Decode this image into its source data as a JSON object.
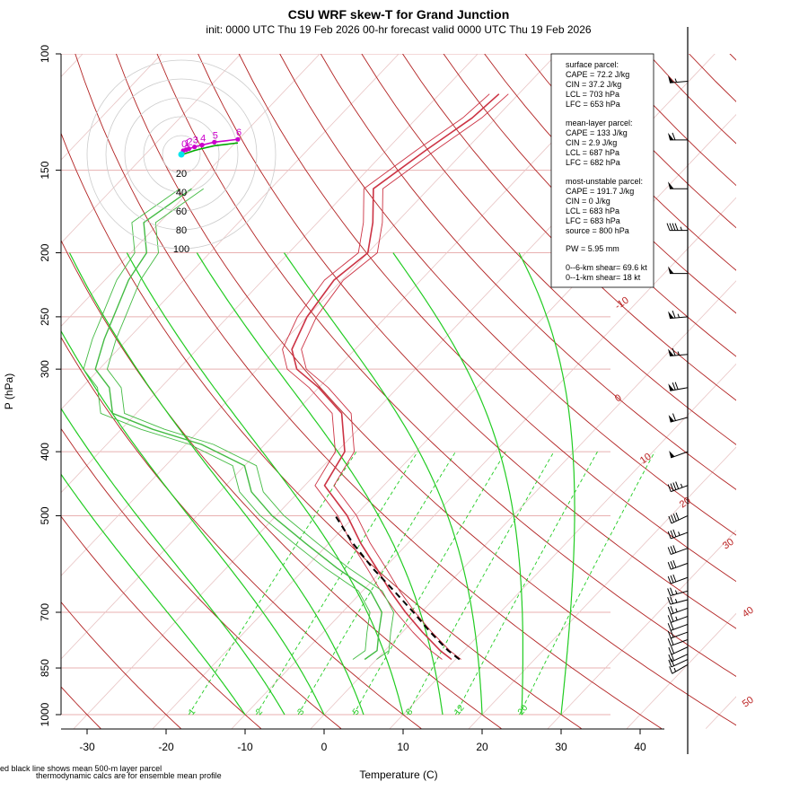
{
  "title": "CSU WRF skew-T for Grand Junction",
  "subtitle": "init: 0000 UTC Thu 19 Feb 2026     00-hr forecast valid 0000 UTC Thu 19 Feb 2026",
  "ylabel": "P (hPa)",
  "xlabel": "Temperature (C)",
  "footnote_line1": "ed black line shows mean 500-m layer parcel",
  "footnote_line2": "thermodynamic calcs are for ensemble mean profile",
  "info_box": {
    "surface_header": "surface parcel:",
    "surface_cape": "CAPE = 72.2 J/kg",
    "surface_cin": "CIN = 37.2 J/kg",
    "surface_lcl": "LCL = 703 hPa",
    "surface_lfc": "LFC = 653 hPa",
    "ml_header": "mean-layer parcel:",
    "ml_cape": "CAPE = 133 J/kg",
    "ml_cin": "CIN = 2.9 J/kg",
    "ml_lcl": "LCL = 687 hPa",
    "ml_lfc": "LFC = 682 hPa",
    "mu_header": "most-unstable parcel:",
    "mu_cape": "CAPE = 191.7 J/kg",
    "mu_cin": "CIN = 0 J/kg",
    "mu_lcl": "LCL = 683 hPa",
    "mu_lfc": "LFC = 683 hPa",
    "mu_source": "source = 800 hPa",
    "pw": "PW =  5.95 mm",
    "shear_06": "0--6-km shear= 69.6 kt",
    "shear_01": "0--1-km shear= 18 kt"
  },
  "chart_data": {
    "type": "skew-t",
    "colors": {
      "isotherm": "#b22222",
      "dry_adiabat": "#b22222",
      "moist_adiabat": "#22cc22",
      "mixing_ratio": "#22cc22",
      "temperature": "#cc3344",
      "dewpoint": "#44bb44",
      "parcel": "#000000",
      "hodograph_members": "#cc00cc",
      "hodograph_mean": "#00aa00"
    },
    "x_ticks": [
      "-30",
      "-20",
      "-10",
      "0",
      "10",
      "20",
      "30",
      "40"
    ],
    "x_tick_values": [
      -30,
      -20,
      -10,
      0,
      10,
      20,
      30,
      40
    ],
    "xlim": [
      -33,
      45
    ],
    "y_ticks": [
      "100",
      "150",
      "200",
      "250",
      "300",
      "400",
      "500",
      "700",
      "850",
      "1000"
    ],
    "y_tick_values": [
      100,
      150,
      200,
      250,
      300,
      400,
      500,
      700,
      850,
      1000
    ],
    "ylim": [
      1000,
      100
    ],
    "isotherm_labels": [
      "-10",
      "0",
      "10",
      "20",
      "30",
      "40",
      "50"
    ],
    "isotherm_label_values": [
      -10,
      0,
      10,
      20,
      30,
      40,
      50
    ],
    "mixing_ratio_labels": [
      "1",
      "2",
      "3",
      "5",
      "8",
      "12",
      "20"
    ],
    "mixing_ratio_values": [
      1,
      2,
      3,
      5,
      8,
      12,
      20
    ],
    "temperature_profile": {
      "pressure": [
        825,
        800,
        750,
        700,
        650,
        600,
        550,
        500,
        450,
        400,
        350,
        320,
        300,
        280,
        250,
        220,
        200,
        180,
        160,
        140,
        125,
        115
      ],
      "temp": [
        9.5,
        7.0,
        2.5,
        -2.0,
        -6.5,
        -11.0,
        -16.0,
        -21.0,
        -27.5,
        -29.0,
        -34.0,
        -40.0,
        -45.0,
        -48.0,
        -50.0,
        -51.0,
        -50.0,
        -53.0,
        -57.0,
        -55.0,
        -53.0,
        -52.5
      ]
    },
    "dewpoint_profile": {
      "pressure": [
        825,
        800,
        750,
        700,
        650,
        600,
        550,
        500,
        460,
        420,
        390,
        370,
        350,
        320,
        300,
        270,
        250,
        220,
        200,
        180,
        160
      ],
      "dewpoint": [
        -1.5,
        -1.0,
        -3.0,
        -5.0,
        -9.0,
        -16.0,
        -23.0,
        -30.5,
        -36.0,
        -40.0,
        -48.0,
        -56.0,
        -63.0,
        -66.5,
        -70.5,
        -73.0,
        -74.5,
        -77.0,
        -78.0,
        -82.0,
        -80.0
      ]
    },
    "parcel_profile": {
      "pressure": [
        825,
        800,
        750,
        700,
        650,
        600,
        550,
        500
      ],
      "temp": [
        10.5,
        8.0,
        3.5,
        -1.0,
        -6.0,
        -11.5,
        -17.0,
        -22.5
      ]
    },
    "hodograph": {
      "rings": [
        "20",
        "40",
        "60",
        "80",
        "100"
      ],
      "ring_values": [
        20,
        40,
        60,
        80,
        100
      ],
      "height_labels": [
        "0",
        "1",
        "2",
        "3",
        "4",
        "5",
        "6"
      ],
      "u": [
        2,
        5,
        8,
        14,
        22,
        35,
        60
      ],
      "v": [
        4,
        5,
        6,
        8,
        10,
        13,
        16
      ]
    },
    "wind_barbs": {
      "pressure": [
        110,
        135,
        160,
        185,
        215,
        250,
        285,
        320,
        355,
        400,
        450,
        500,
        530,
        560,
        590,
        620,
        650,
        670,
        690,
        710,
        730,
        750,
        770,
        790,
        810,
        825,
        840
      ],
      "speed_kt": [
        55,
        60,
        50,
        45,
        50,
        65,
        65,
        70,
        60,
        50,
        45,
        40,
        35,
        30,
        30,
        30,
        25,
        25,
        25,
        25,
        20,
        20,
        20,
        20,
        20,
        20,
        15
      ],
      "direction_deg": [
        265,
        270,
        270,
        270,
        270,
        265,
        265,
        260,
        255,
        250,
        250,
        245,
        250,
        250,
        250,
        250,
        255,
        255,
        250,
        250,
        250,
        250,
        250,
        245,
        245,
        245,
        240
      ]
    }
  }
}
